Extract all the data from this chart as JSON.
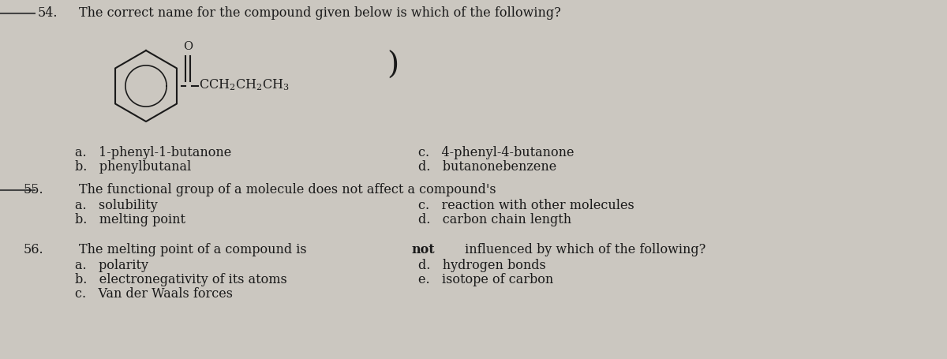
{
  "background_color": "#cbc7c0",
  "text_color": "#1a1a1a",
  "font_family": "DejaVu Serif",
  "q54_number": "54.",
  "q54_question": "The correct name for the compound given below is which of the following?",
  "q54_a": "a.   1-phenyl-1-butanone",
  "q54_b": "b.   phenylbutanal",
  "q54_c": "c.   4-phenyl-4-butanone",
  "q54_d": "d.   butanonebenzene",
  "q55_number": "55.",
  "q55_question": "The functional group of a molecule does not affect a compound's",
  "q55_a": "a.   solubility",
  "q55_b": "b.   melting point",
  "q55_c": "c.   reaction with other molecules",
  "q55_d": "d.   carbon chain length",
  "q56_number": "56.",
  "q56_question_start": "The melting point of a compound is ",
  "q56_question_bold": "not",
  "q56_question_end": " influenced by which of the following?",
  "q56_a": "a.   polarity",
  "q56_b": "b.   electronegativity of its atoms",
  "q56_c": "c.   Van der Waals forces",
  "q56_d": "d.   hydrogen bonds",
  "q56_e": "e.   isotope of carbon",
  "line_color": "#444444",
  "fs": 11.5
}
